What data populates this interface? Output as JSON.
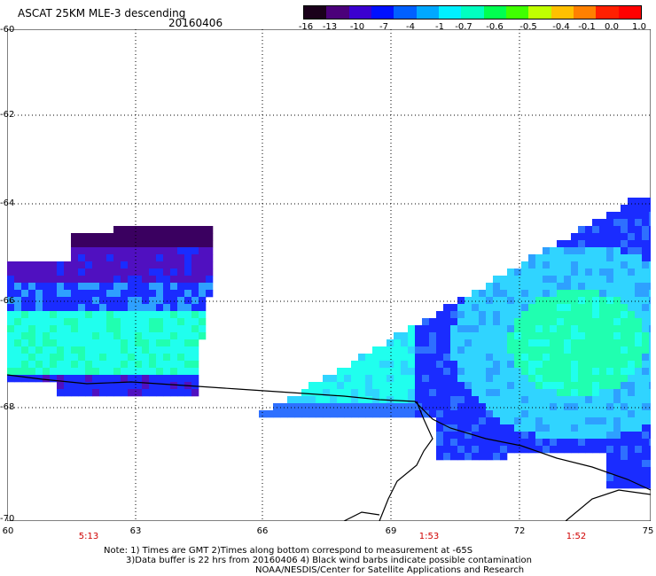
{
  "header": {
    "title": "ASCAT 25KM MLE-3 descending",
    "date": "20160406"
  },
  "colorbar": {
    "labels": [
      "-16",
      "-13",
      "-10",
      "-7",
      "-4",
      "-1",
      "-0.7",
      "-0.6",
      "-0.5",
      "-0.4",
      "-0.1",
      "0.0",
      "1.0"
    ],
    "colors": [
      "#1a001a",
      "#4b007a",
      "#3b00d0",
      "#0010ff",
      "#0060ff",
      "#00a8ff",
      "#00f0ff",
      "#00ffc0",
      "#00ff50",
      "#40ff00",
      "#c0ff00",
      "#ffc000",
      "#ff8000",
      "#ff2000",
      "#ff0000"
    ]
  },
  "map": {
    "lat_labels": [
      "-60",
      "-62",
      "-64",
      "-66",
      "-68",
      "-70"
    ],
    "lon_labels": [
      "60",
      "63",
      "66",
      "69",
      "72",
      "75"
    ],
    "time_labels": [
      "5:13",
      "1:53",
      "1:52"
    ]
  },
  "notes": {
    "line1": "Note: 1) Times are GMT 2)Times along bottom correspond to measurement at -65S",
    "line2": "3)Data buffer is 22 hrs from 20160406 4) Black wind barbs indicate possible contamination",
    "line3": "NOAA/NESDIS/Center for Satellite Applications and Research"
  }
}
